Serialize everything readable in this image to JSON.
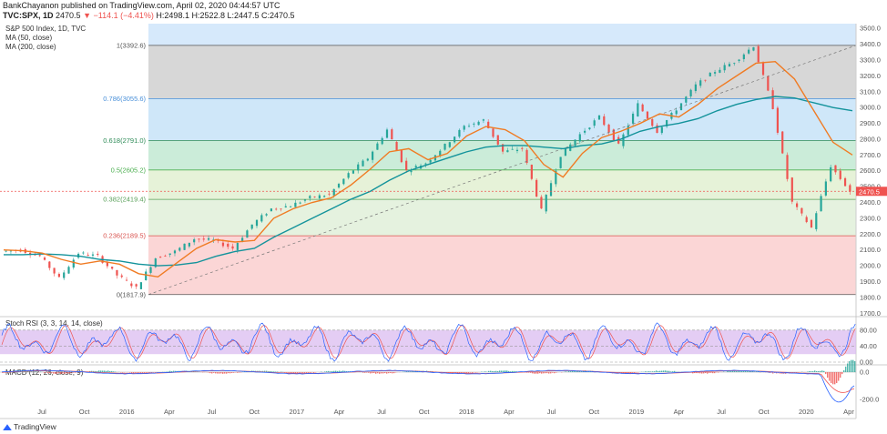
{
  "header": {
    "published": "BankChayanon published on TradingView.com, April 02, 2020 04:44:57 UTC",
    "symbol": "TVC:SPX, 1D",
    "last": "2470.5",
    "change": "−114.1 (−4.41%)",
    "ohlc": "H:2498.1 H:2522.8 L:2447.5 C:2470.5"
  },
  "pane_labels": {
    "main": [
      "S&P 500 Index, 1D, TVC",
      "MA (50, close)",
      "MA (200, close)"
    ],
    "stoch": "Stoch RSI (3, 3, 14, 14, close)",
    "macd": "MACD (12, 26, close, 9)"
  },
  "logo_text": "TradingView",
  "colors": {
    "price": "#3a3a3a",
    "ma50": "#f07b23",
    "ma200": "#13939b",
    "up": "#26a69a",
    "down": "#ef5350",
    "stoch_k": "#2962ff",
    "stoch_d": "#ef5350",
    "stoch_band": "#d9b8f0"
  },
  "chart_data": {
    "type": "line",
    "price_axis": {
      "ticks": [
        "3500.0",
        "3400.0",
        "3300.0",
        "3200.0",
        "3100.0",
        "3000.0",
        "2900.0",
        "2800.0",
        "2700.0",
        "2600.0",
        "2500.0",
        "2400.0",
        "2300.0",
        "2200.0",
        "2100.0",
        "2000.0",
        "1900.0",
        "1800.0",
        "1700.0"
      ],
      "ylim": [
        1690,
        3530
      ],
      "last_label": "2470.5",
      "last_value": 2470.5
    },
    "x_ticks": [
      "Jul",
      "Oct",
      "2016",
      "Apr",
      "Jul",
      "Oct",
      "2017",
      "Apr",
      "Jul",
      "Oct",
      "2018",
      "Apr",
      "Jul",
      "Oct",
      "2019",
      "Apr",
      "Jul",
      "Oct",
      "2020",
      "Apr"
    ],
    "fib_levels": [
      {
        "label": "1(3392.6)",
        "value": 3392.6,
        "fill": "#d7d7d7"
      },
      {
        "label": "0.786(3055.6)",
        "value": 3055.6,
        "fill": "#cfe7f9"
      },
      {
        "label": "0.618(2791.0)",
        "value": 2791.0,
        "fill": "#cbecd9"
      },
      {
        "label": "0.5(2605.2)",
        "value": 2605.2,
        "fill": "#e6f2d8"
      },
      {
        "label": "0.382(2419.4)",
        "value": 2419.4,
        "fill": "#e5f2df"
      },
      {
        "label": "0.236(2189.5)",
        "value": 2189.5,
        "fill": "#fbd6d6"
      },
      {
        "label": "0(1817.9)",
        "value": 1817.9,
        "fill": ""
      }
    ],
    "price": [
      {
        "x": "2015-04",
        "y": 2090
      },
      {
        "x": "2015-06",
        "y": 2100
      },
      {
        "x": "2015-08",
        "y": 2060
      },
      {
        "x": "2015-09",
        "y": 1920
      },
      {
        "x": "2015-10",
        "y": 2080
      },
      {
        "x": "2015-12",
        "y": 2060
      },
      {
        "x": "2016-01",
        "y": 1940
      },
      {
        "x": "2016-02",
        "y": 1860
      },
      {
        "x": "2016-03",
        "y": 2050
      },
      {
        "x": "2016-05",
        "y": 2090
      },
      {
        "x": "2016-07",
        "y": 2170
      },
      {
        "x": "2016-09",
        "y": 2160
      },
      {
        "x": "2016-11",
        "y": 2110
      },
      {
        "x": "2016-12",
        "y": 2260
      },
      {
        "x": "2017-02",
        "y": 2360
      },
      {
        "x": "2017-04",
        "y": 2380
      },
      {
        "x": "2017-06",
        "y": 2430
      },
      {
        "x": "2017-08",
        "y": 2450
      },
      {
        "x": "2017-10",
        "y": 2580
      },
      {
        "x": "2017-12",
        "y": 2680
      },
      {
        "x": "2018-01",
        "y": 2860
      },
      {
        "x": "2018-02",
        "y": 2600
      },
      {
        "x": "2018-04",
        "y": 2650
      },
      {
        "x": "2018-06",
        "y": 2760
      },
      {
        "x": "2018-08",
        "y": 2880
      },
      {
        "x": "2018-09",
        "y": 2920
      },
      {
        "x": "2018-10",
        "y": 2720
      },
      {
        "x": "2018-11",
        "y": 2740
      },
      {
        "x": "2018-12",
        "y": 2350
      },
      {
        "x": "2019-01",
        "y": 2700
      },
      {
        "x": "2019-03",
        "y": 2830
      },
      {
        "x": "2019-04",
        "y": 2940
      },
      {
        "x": "2019-05",
        "y": 2760
      },
      {
        "x": "2019-07",
        "y": 3020
      },
      {
        "x": "2019-08",
        "y": 2850
      },
      {
        "x": "2019-10",
        "y": 2990
      },
      {
        "x": "2019-11",
        "y": 3140
      },
      {
        "x": "2019-12",
        "y": 3230
      },
      {
        "x": "2020-01",
        "y": 3290
      },
      {
        "x": "2020-02",
        "y": 3390
      },
      {
        "x": "2020-03a",
        "y": 3000
      },
      {
        "x": "2020-03b",
        "y": 2400
      },
      {
        "x": "2020-03c",
        "y": 2240
      },
      {
        "x": "2020-03d",
        "y": 2630
      },
      {
        "x": "2020-04",
        "y": 2470
      }
    ],
    "ma50": [
      2100,
      2095,
      2080,
      2040,
      2010,
      2030,
      2010,
      1950,
      1930,
      2020,
      2110,
      2165,
      2150,
      2160,
      2300,
      2360,
      2400,
      2430,
      2510,
      2610,
      2720,
      2740,
      2670,
      2710,
      2820,
      2880,
      2860,
      2790,
      2640,
      2560,
      2710,
      2810,
      2850,
      2900,
      2960,
      2940,
      3020,
      3120,
      3200,
      3280,
      3290,
      3180,
      2980,
      2780,
      2700
    ],
    "ma200": [
      2070,
      2070,
      2075,
      2070,
      2060,
      2040,
      2030,
      2010,
      2000,
      2005,
      2020,
      2060,
      2090,
      2110,
      2180,
      2240,
      2300,
      2360,
      2420,
      2470,
      2540,
      2600,
      2640,
      2680,
      2720,
      2750,
      2760,
      2760,
      2750,
      2740,
      2760,
      2770,
      2800,
      2850,
      2880,
      2900,
      2930,
      2980,
      3020,
      3050,
      3070,
      3060,
      3030,
      3000,
      2980
    ],
    "stoch_rsi": {
      "levels": [
        0,
        40,
        80
      ],
      "tick_labels": [
        "80.00",
        "40.00",
        "0.00"
      ]
    },
    "macd": {
      "tick_labels": [
        "0.0",
        "-200.0"
      ],
      "ylim": [
        -260,
        40
      ]
    }
  }
}
